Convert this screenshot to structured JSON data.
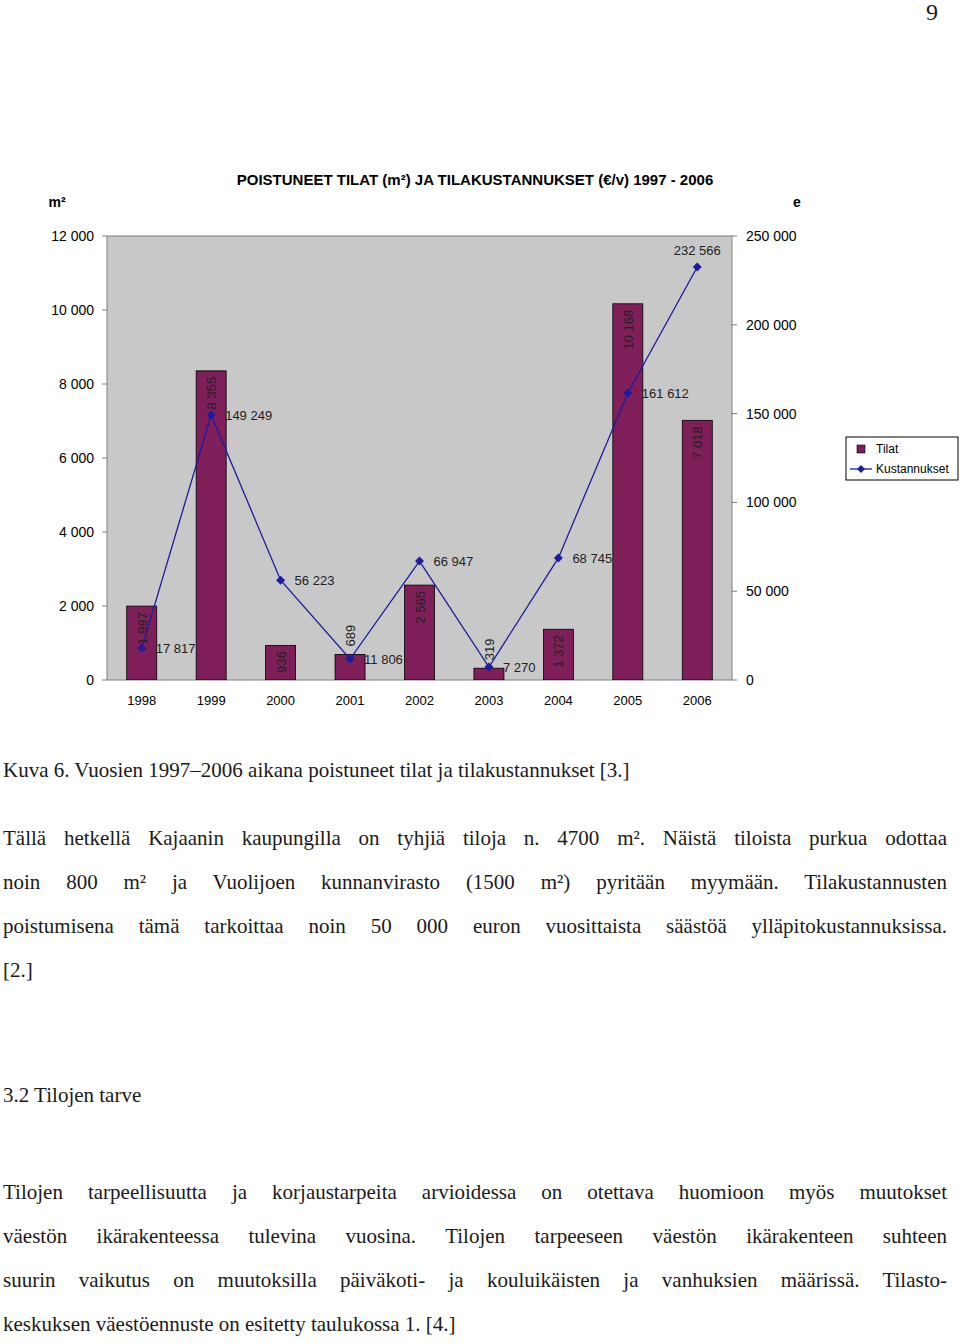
{
  "page_number": "9",
  "chart_data": {
    "type": "bar",
    "title": "POISTUNEET TILAT (m²) JA TILAKUSTANNUKSET (€/v) 1997 - 2006",
    "y_label": "m²",
    "y2_label": "e",
    "categories": [
      "1998",
      "1999",
      "2000",
      "2001",
      "2002",
      "2003",
      "2004",
      "2005",
      "2006"
    ],
    "series": [
      {
        "name": "Tilat",
        "type": "bar",
        "color": "#7f1f5a",
        "values": [
          1997,
          8355,
          936,
          689,
          2565,
          319,
          1372,
          10168,
          7018
        ],
        "value_labels": [
          "1 997",
          "8 355",
          "936",
          "689",
          "2 565",
          "319",
          "1 372",
          "10 168",
          "7 018"
        ]
      },
      {
        "name": "Kustannukset",
        "type": "line",
        "axis": "y2",
        "color": "#1c1c9c",
        "marker": "diamond",
        "values": [
          17817,
          149249,
          56223,
          11806,
          66947,
          7270,
          68745,
          161612,
          232566
        ],
        "value_labels": [
          "17 817",
          "149 249",
          "56 223",
          "11 806",
          "66 947",
          "7 270",
          "68 745",
          "161 612",
          "232 566"
        ]
      }
    ],
    "ylim": [
      0,
      12000
    ],
    "yticks": [
      0,
      {
        "value": 2000,
        "label": "2 000"
      },
      {
        "value": 4000,
        "label": "4 000"
      },
      {
        "value": 6000,
        "label": "6 000"
      },
      {
        "value": 8000,
        "label": "8 000"
      },
      {
        "value": 10000,
        "label": "10 000"
      },
      {
        "value": 12000,
        "label": "12 000"
      }
    ],
    "y2lim": [
      0,
      250000
    ],
    "y2ticks": [
      0,
      {
        "value": 50000,
        "label": "50 000"
      },
      {
        "value": 100000,
        "label": "100 000"
      },
      {
        "value": 150000,
        "label": "150 000"
      },
      {
        "value": 200000,
        "label": "200 000"
      },
      {
        "value": 250000,
        "label": "250 000"
      }
    ],
    "grid": false,
    "legend": "right",
    "data_labels": true
  },
  "caption": "Kuva 6. Vuosien 1997–2006 aikana poistuneet tilat ja tilakustannukset [3.]",
  "body": [
    {
      "type": "paragraph",
      "lines": [
        "Tällä hetkellä Kajaanin kaupungilla on tyhjiä tiloja n. 4700 m². Näistä tiloista purkua odottaa",
        "noin 800 m² ja Vuolijoen kunnanvirasto (1500 m²) pyritään myymään. Tilakustannusten",
        "poistumisena tämä tarkoittaa noin 50 000 euron vuosittaista säästöä ylläpitokustannuksissa.",
        "[2.]"
      ]
    },
    {
      "type": "heading",
      "text": "3.2 Tilojen tarve"
    },
    {
      "type": "paragraph",
      "lines": [
        "Tilojen tarpeellisuutta ja korjaustarpeita arvioidessa on otettava huomioon myös muutokset",
        "väestön ikärakenteessa tulevina vuosina. Tilojen tarpeeseen väestön ikärakenteen suhteen",
        "suurin vaikutus on muutoksilla päiväkoti- ja kouluikäisten ja vanhuksien määrissä. Tilasto-",
        "keskuksen väestöennuste on esitetty taulukossa 1. [4.]"
      ]
    }
  ]
}
